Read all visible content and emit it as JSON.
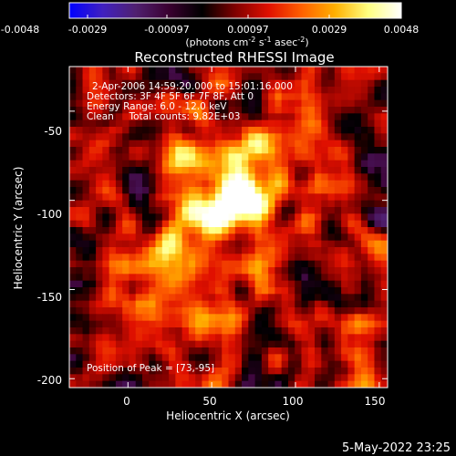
{
  "colorbar": {
    "tick_labels": [
      "-0.0048",
      "-0.0029",
      "-0.00097",
      "0.00097",
      "0.0029",
      "0.0048"
    ],
    "units_text": "(photons cm",
    "units_exp1": "-2",
    "units_mid": " s",
    "units_exp2": "-1",
    "units_tail": " asec",
    "units_exp3": "-2",
    "units_close": ")"
  },
  "plot": {
    "title": "Reconstructed RHESSI Image",
    "xlabel": "Heliocentric X (arcsec)",
    "ylabel": "Heliocentric Y (arcsec)",
    "x_ticks": [
      "0",
      "50",
      "100",
      "150"
    ],
    "y_ticks": [
      "-50",
      "-100",
      "-150",
      "-200"
    ],
    "x_tick_values": [
      0,
      50,
      100,
      150
    ],
    "y_tick_values": [
      -50,
      -100,
      -150,
      -200
    ],
    "xlim": [
      -35,
      155
    ],
    "ylim": [
      -205,
      -25
    ]
  },
  "annotations": {
    "line1": "2-Apr-2006 14:59:20.000 to 15:01:16.000",
    "line2": "Detectors: 3F 4F 5F 6F 7F 8F, Att 0",
    "line3": "Energy Range: 6.0 - 12.0 keV",
    "line4": "Clean     Total counts: 9.82E+03",
    "peak": "Position of Peak = [73,-95]"
  },
  "footer": {
    "timestamp": "5-May-2022 23:25"
  },
  "colors": {
    "background": "#000000",
    "axis": "#ffffff",
    "colormap": [
      "#0000ff",
      "#4020c0",
      "#502070",
      "#3a0030",
      "#000000",
      "#800000",
      "#e01000",
      "#ff6000",
      "#ffb000",
      "#ffff80",
      "#ffffff"
    ]
  }
}
